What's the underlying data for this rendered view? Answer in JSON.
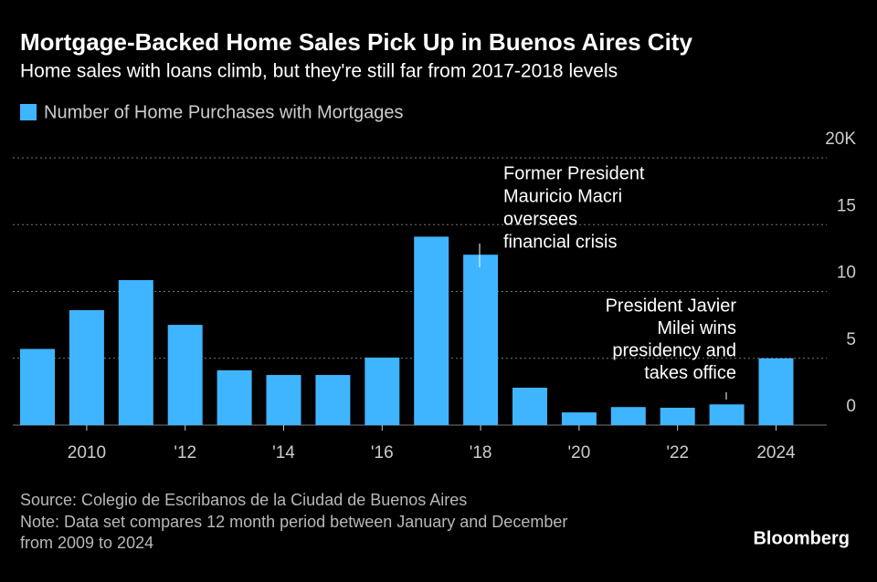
{
  "chart_data": {
    "type": "bar",
    "title": "Mortgage-Backed Home Sales Pick Up in Buenos Aires City",
    "subtitle": "Home sales with loans climb, but they're still far from 2017-2018 levels",
    "categories": [
      null,
      "2010",
      null,
      "'12",
      null,
      "'14",
      null,
      "'16",
      null,
      "'18",
      null,
      "'20",
      null,
      "'22",
      null,
      "2024"
    ],
    "series": [
      {
        "name": "Number of Home Purchases with Mortgages",
        "color": "#3fb5ff",
        "values": [
          5.7,
          8.6,
          10.85,
          7.5,
          4.1,
          3.75,
          3.75,
          5.05,
          14.1,
          12.75,
          2.8,
          0.95,
          1.35,
          1.3,
          1.55,
          5.0
        ]
      }
    ],
    "ylim": [
      0,
      20
    ],
    "yticks": [
      0,
      5,
      10,
      15,
      {
        "value": 20,
        "label": "20K"
      }
    ],
    "grid": true,
    "annotations": [
      {
        "lines": [
          "Former President",
          "Mauricio Macri",
          "oversees",
          "financial crisis"
        ]
      },
      {
        "lines": [
          "President Javier",
          "Milei wins",
          "presidency and",
          "takes office"
        ]
      }
    ],
    "source": "Source: Colegio de Escribanos de la Ciudad de Buenos Aires",
    "note": [
      "Note: Data set compares 12 month period between January and December",
      "from 2009 to 2024"
    ],
    "branding": "Bloomberg"
  }
}
